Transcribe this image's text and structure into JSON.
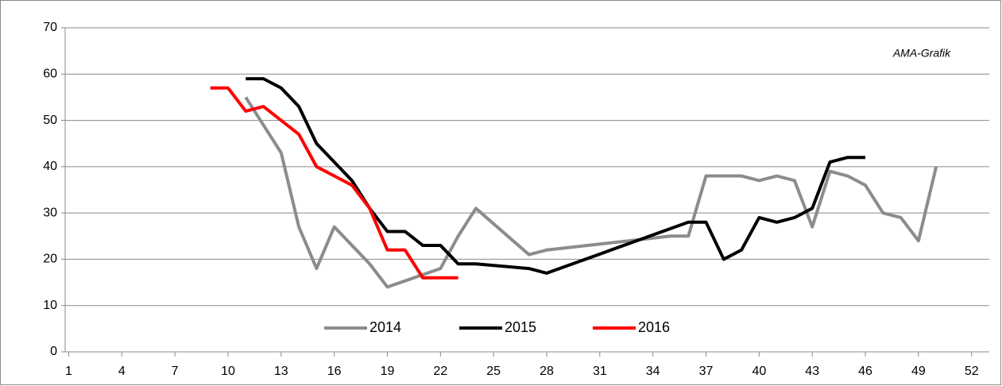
{
  "chart_data": {
    "type": "line",
    "annotation": "AMA-Grafik",
    "xlim": [
      0.8,
      53
    ],
    "xticks": [
      1,
      4,
      7,
      10,
      13,
      16,
      19,
      22,
      25,
      28,
      31,
      34,
      37,
      40,
      43,
      46,
      49,
      52
    ],
    "ylim": [
      0,
      70
    ],
    "yticks": [
      0,
      10,
      20,
      30,
      40,
      50,
      60,
      70
    ],
    "grid": true,
    "legend": "bottom",
    "series": [
      {
        "name": "2014",
        "color": "#8c8c8c",
        "x": [
          11,
          12,
          13,
          14,
          15,
          16,
          17,
          18,
          19,
          22,
          23,
          24,
          27,
          28,
          35,
          36,
          37,
          38,
          39,
          40,
          41,
          42,
          43,
          44,
          45,
          46,
          47,
          48,
          49,
          50
        ],
        "values": [
          55,
          49,
          43,
          27,
          18,
          27,
          23,
          19,
          14,
          18,
          25,
          31,
          21,
          22,
          25,
          25,
          38,
          38,
          38,
          37,
          38,
          37,
          27,
          39,
          38,
          36,
          30,
          29,
          24,
          40
        ]
      },
      {
        "name": "2015",
        "color": "#000000",
        "x": [
          11,
          12,
          13,
          14,
          15,
          16,
          17,
          18,
          19,
          20,
          21,
          22,
          23,
          24,
          27,
          28,
          36,
          37,
          38,
          39,
          40,
          41,
          42,
          43,
          44,
          45,
          46
        ],
        "values": [
          59,
          59,
          57,
          53,
          45,
          41,
          37,
          31,
          26,
          26,
          23,
          23,
          19,
          19,
          18,
          17,
          28,
          28,
          20,
          22,
          29,
          28,
          29,
          31,
          41,
          42,
          42
        ]
      },
      {
        "name": "2016",
        "color": "#ff0000",
        "x": [
          9,
          10,
          11,
          12,
          13,
          14,
          15,
          16,
          17,
          18,
          19,
          20,
          21,
          22,
          23
        ],
        "values": [
          57,
          57,
          52,
          53,
          50,
          47,
          40,
          38,
          36,
          31,
          22,
          22,
          16,
          16,
          16
        ]
      }
    ]
  }
}
